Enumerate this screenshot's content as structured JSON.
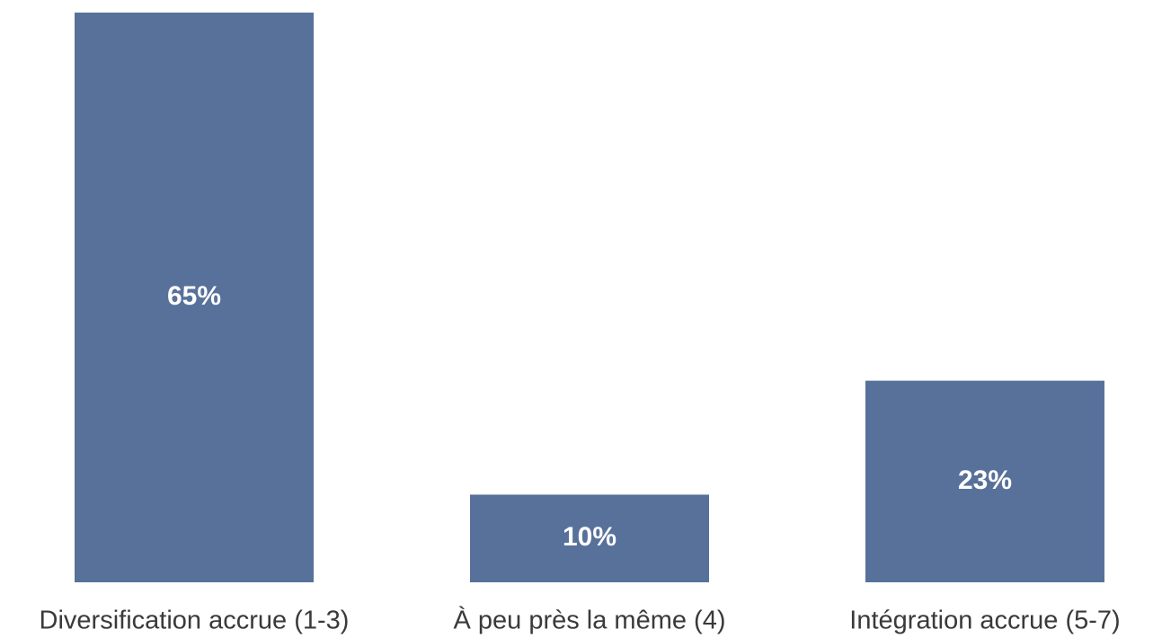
{
  "chart_data": {
    "type": "bar",
    "categories": [
      "Diversification accrue (1-3)",
      "À peu près la même (4)",
      "Intégration accrue (5-7)"
    ],
    "values": [
      65,
      10,
      23
    ],
    "value_labels": [
      "65%",
      "10%",
      "23%"
    ],
    "color": "#57719a"
  }
}
